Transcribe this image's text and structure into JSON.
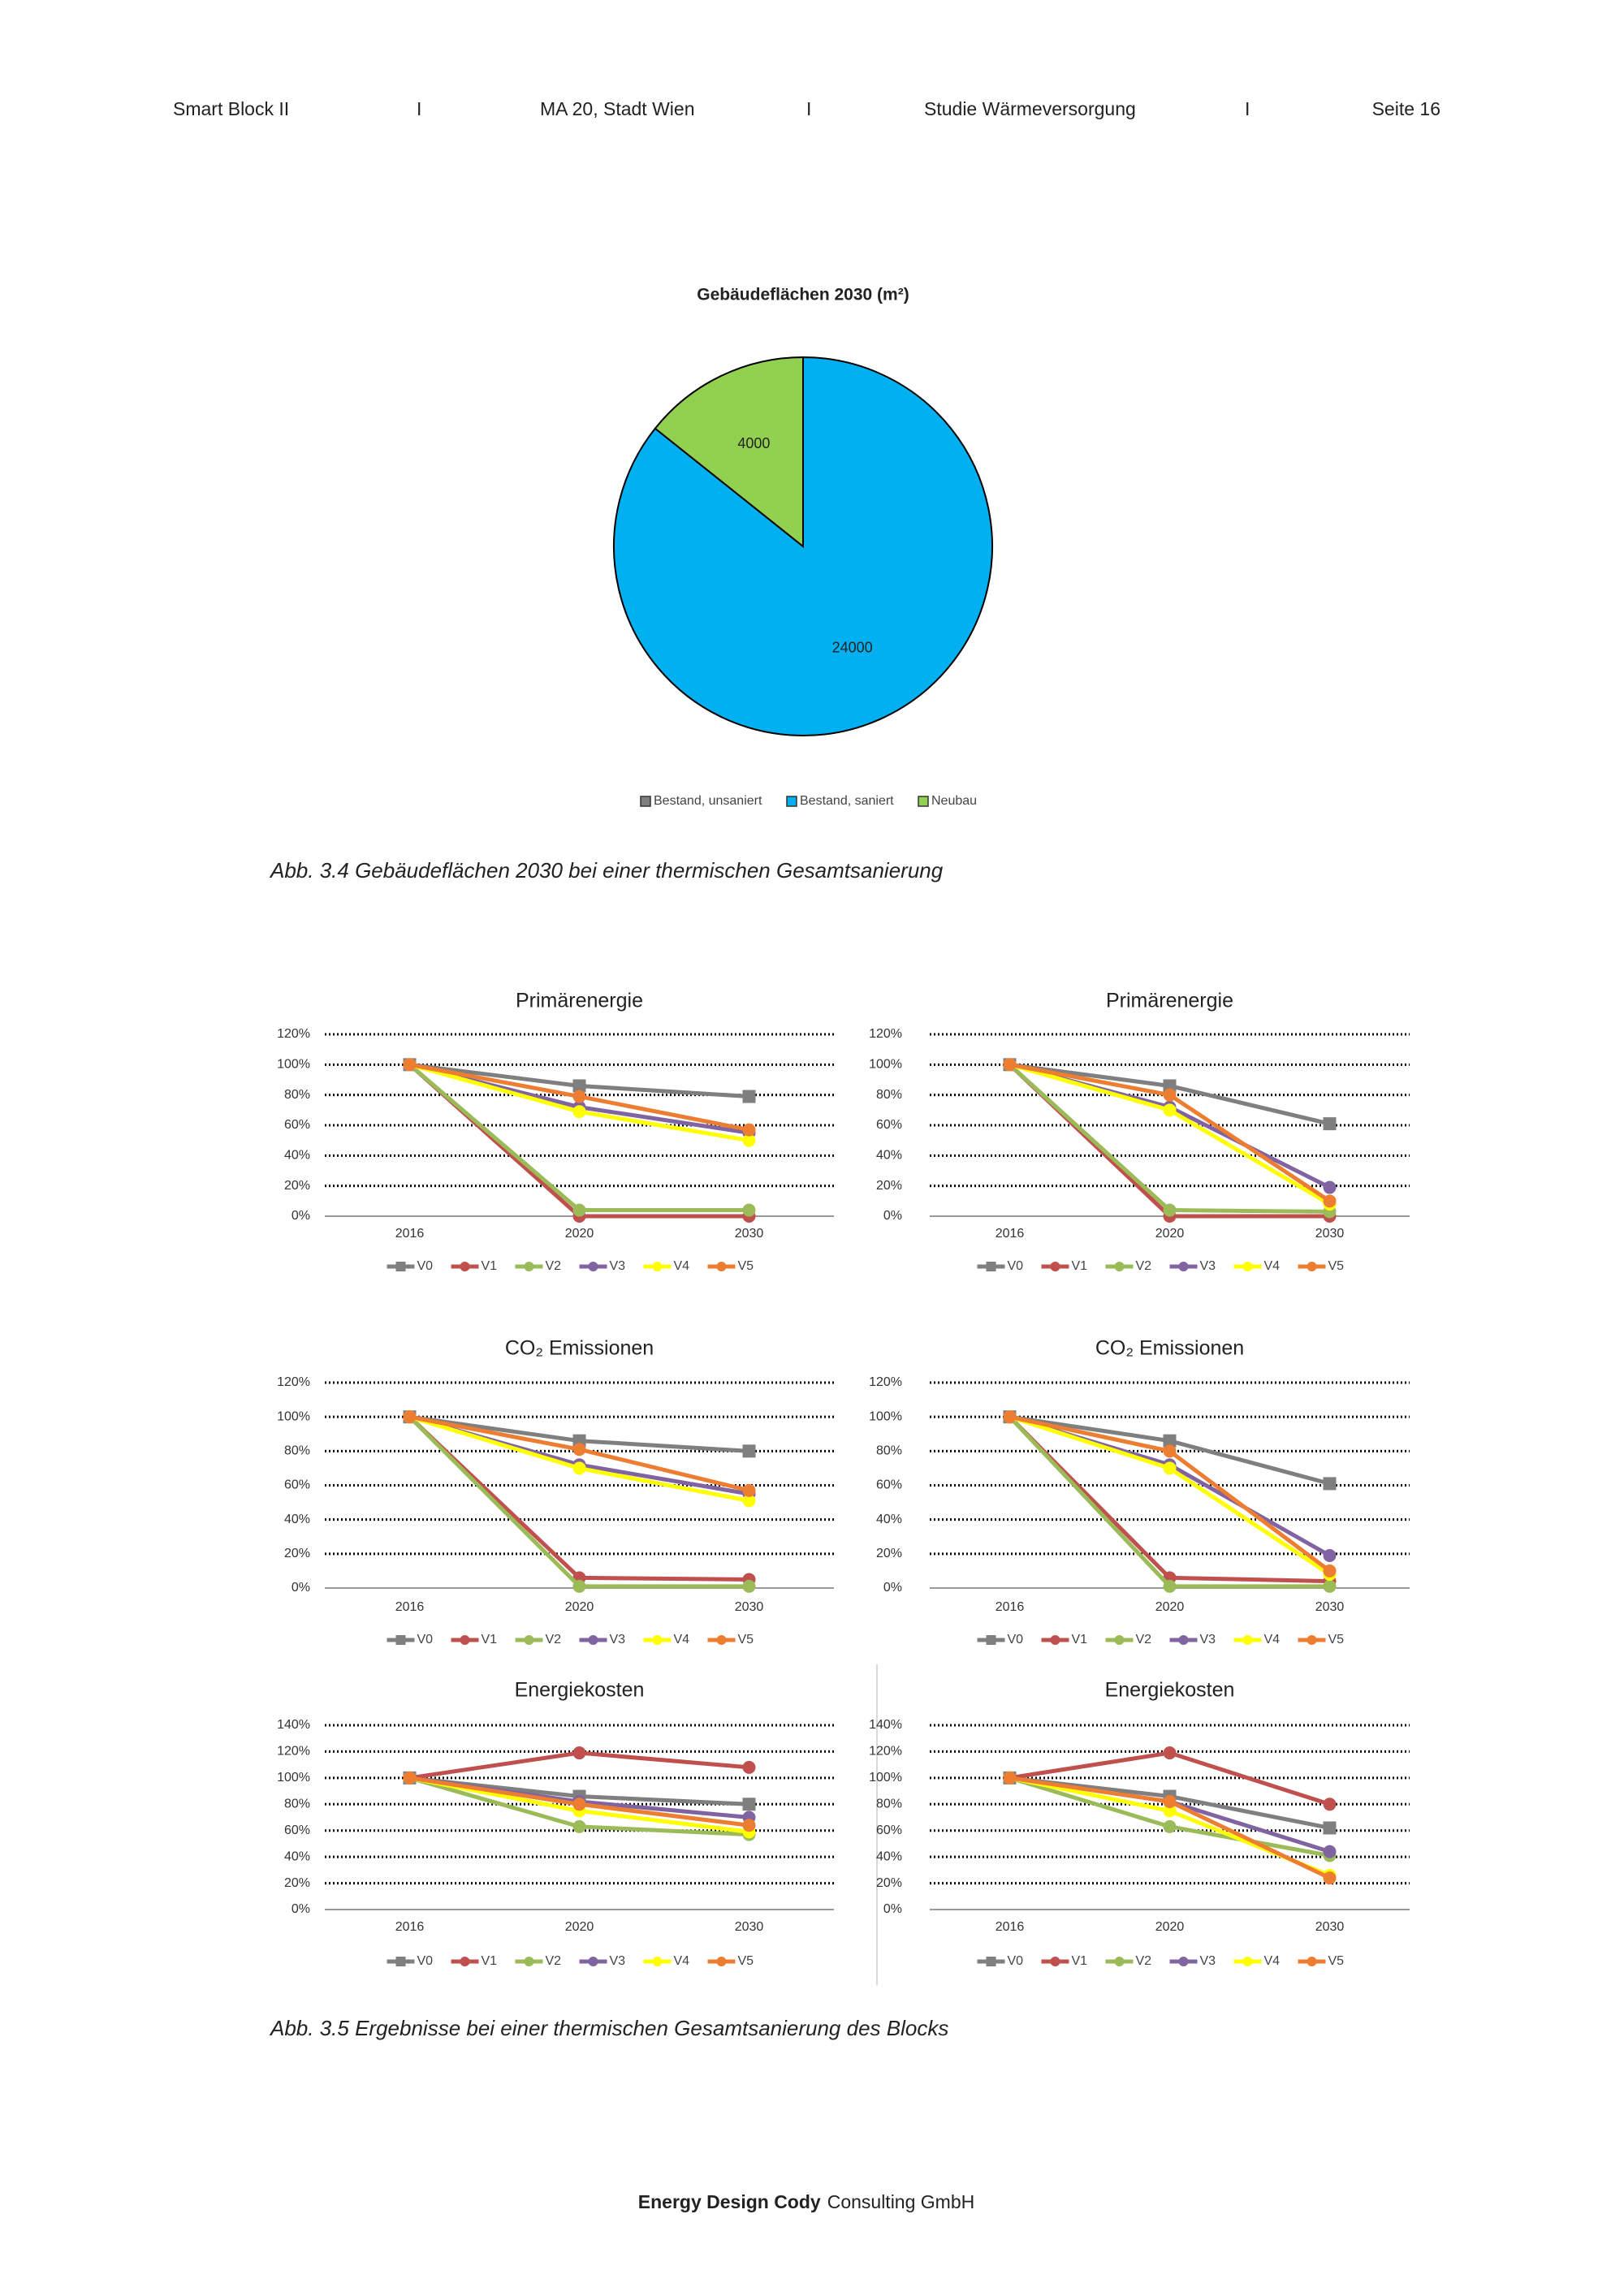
{
  "header": {
    "items": [
      "Smart Block II",
      "I",
      "MA 20, Stadt Wien",
      "I",
      "Studie Wärmeversorgung",
      "I",
      "Seite 16"
    ]
  },
  "chart_data": [
    {
      "type": "pie",
      "title": "Gebäudeflächen 2030 (m²)",
      "categories": [
        "Bestand, unsaniert",
        "Bestand, saniert",
        "Neubau"
      ],
      "values": [
        0,
        24000,
        4000
      ],
      "colors": [
        "#7f7f7f",
        "#00b0f0",
        "#92d050"
      ]
    },
    {
      "type": "line",
      "title": "Primärenergie",
      "categories": [
        "2016",
        "2020",
        "2030"
      ],
      "ylim": [
        0,
        120
      ],
      "yticks": [
        {
          "value": 0,
          "label": "0%"
        },
        {
          "value": 20,
          "label": "20%"
        },
        {
          "value": 40,
          "label": "40%"
        },
        {
          "value": 60,
          "label": "60%"
        },
        {
          "value": 80,
          "label": "80%"
        },
        {
          "value": 100,
          "label": "100%"
        },
        {
          "value": 120,
          "label": "120%"
        }
      ],
      "grid": true,
      "series": [
        {
          "name": "V0",
          "color": "#7f7f7f",
          "marker": "square",
          "values": [
            100,
            86,
            79
          ]
        },
        {
          "name": "V1",
          "color": "#c0504d",
          "marker": "circle",
          "values": [
            100,
            0,
            0
          ]
        },
        {
          "name": "V2",
          "color": "#9bbb59",
          "marker": "circle",
          "values": [
            100,
            4,
            4
          ]
        },
        {
          "name": "V3",
          "color": "#8064a2",
          "marker": "circle",
          "values": [
            100,
            72,
            55
          ]
        },
        {
          "name": "V4",
          "color": "#ffff00",
          "marker": "circle",
          "values": [
            100,
            69,
            50
          ]
        },
        {
          "name": "V5",
          "color": "#ed7d31",
          "marker": "circle",
          "values": [
            100,
            79,
            57
          ]
        }
      ]
    },
    {
      "type": "line",
      "title": "Primärenergie",
      "categories": [
        "2016",
        "2020",
        "2030"
      ],
      "ylim": [
        0,
        120
      ],
      "yticks": [
        {
          "value": 0,
          "label": "0%"
        },
        {
          "value": 20,
          "label": "20%"
        },
        {
          "value": 40,
          "label": "40%"
        },
        {
          "value": 60,
          "label": "60%"
        },
        {
          "value": 80,
          "label": "80%"
        },
        {
          "value": 100,
          "label": "100%"
        },
        {
          "value": 120,
          "label": "120%"
        }
      ],
      "grid": true,
      "series": [
        {
          "name": "V0",
          "color": "#7f7f7f",
          "marker": "square",
          "values": [
            100,
            86,
            61
          ]
        },
        {
          "name": "V1",
          "color": "#c0504d",
          "marker": "circle",
          "values": [
            100,
            0,
            0
          ]
        },
        {
          "name": "V2",
          "color": "#9bbb59",
          "marker": "circle",
          "values": [
            100,
            4,
            3
          ]
        },
        {
          "name": "V3",
          "color": "#8064a2",
          "marker": "circle",
          "values": [
            100,
            72,
            19
          ]
        },
        {
          "name": "V4",
          "color": "#ffff00",
          "marker": "circle",
          "values": [
            100,
            70,
            8
          ]
        },
        {
          "name": "V5",
          "color": "#ed7d31",
          "marker": "circle",
          "values": [
            100,
            80,
            10
          ]
        }
      ]
    },
    {
      "type": "line",
      "title": "CO₂ Emissionen",
      "categories": [
        "2016",
        "2020",
        "2030"
      ],
      "ylim": [
        0,
        120
      ],
      "yticks": [
        {
          "value": 0,
          "label": "0%"
        },
        {
          "value": 20,
          "label": "20%"
        },
        {
          "value": 40,
          "label": "40%"
        },
        {
          "value": 60,
          "label": "60%"
        },
        {
          "value": 80,
          "label": "80%"
        },
        {
          "value": 100,
          "label": "100%"
        },
        {
          "value": 120,
          "label": "120%"
        }
      ],
      "grid": true,
      "series": [
        {
          "name": "V0",
          "color": "#7f7f7f",
          "marker": "square",
          "values": [
            100,
            86,
            80
          ]
        },
        {
          "name": "V1",
          "color": "#c0504d",
          "marker": "circle",
          "values": [
            100,
            6,
            5
          ]
        },
        {
          "name": "V2",
          "color": "#9bbb59",
          "marker": "circle",
          "values": [
            100,
            1,
            1
          ]
        },
        {
          "name": "V3",
          "color": "#8064a2",
          "marker": "circle",
          "values": [
            100,
            72,
            55
          ]
        },
        {
          "name": "V4",
          "color": "#ffff00",
          "marker": "circle",
          "values": [
            100,
            70,
            51
          ]
        },
        {
          "name": "V5",
          "color": "#ed7d31",
          "marker": "circle",
          "values": [
            100,
            81,
            57
          ]
        }
      ]
    },
    {
      "type": "line",
      "title": "CO₂ Emissionen",
      "categories": [
        "2016",
        "2020",
        "2030"
      ],
      "ylim": [
        0,
        120
      ],
      "yticks": [
        {
          "value": 0,
          "label": "0%"
        },
        {
          "value": 20,
          "label": "20%"
        },
        {
          "value": 40,
          "label": "40%"
        },
        {
          "value": 60,
          "label": "60%"
        },
        {
          "value": 80,
          "label": "80%"
        },
        {
          "value": 100,
          "label": "100%"
        },
        {
          "value": 120,
          "label": "120%"
        }
      ],
      "grid": true,
      "series": [
        {
          "name": "V0",
          "color": "#7f7f7f",
          "marker": "square",
          "values": [
            100,
            86,
            61
          ]
        },
        {
          "name": "V1",
          "color": "#c0504d",
          "marker": "circle",
          "values": [
            100,
            6,
            4
          ]
        },
        {
          "name": "V2",
          "color": "#9bbb59",
          "marker": "circle",
          "values": [
            100,
            1,
            1
          ]
        },
        {
          "name": "V3",
          "color": "#8064a2",
          "marker": "circle",
          "values": [
            100,
            72,
            19
          ]
        },
        {
          "name": "V4",
          "color": "#ffff00",
          "marker": "circle",
          "values": [
            100,
            70,
            8
          ]
        },
        {
          "name": "V5",
          "color": "#ed7d31",
          "marker": "circle",
          "values": [
            100,
            80,
            10
          ]
        }
      ]
    },
    {
      "type": "line",
      "title": "Energiekosten",
      "categories": [
        "2016",
        "2020",
        "2030"
      ],
      "ylim": [
        0,
        140
      ],
      "yticks": [
        {
          "value": 0,
          "label": "0%"
        },
        {
          "value": 20,
          "label": "20%"
        },
        {
          "value": 40,
          "label": "40%"
        },
        {
          "value": 60,
          "label": "60%"
        },
        {
          "value": 80,
          "label": "80%"
        },
        {
          "value": 100,
          "label": "100%"
        },
        {
          "value": 120,
          "label": "120%"
        },
        {
          "value": 140,
          "label": "140%"
        }
      ],
      "grid": true,
      "series": [
        {
          "name": "V0",
          "color": "#7f7f7f",
          "marker": "square",
          "values": [
            100,
            86,
            80
          ]
        },
        {
          "name": "V1",
          "color": "#c0504d",
          "marker": "circle",
          "values": [
            100,
            119,
            108
          ]
        },
        {
          "name": "V2",
          "color": "#9bbb59",
          "marker": "circle",
          "values": [
            100,
            63,
            57
          ]
        },
        {
          "name": "V3",
          "color": "#8064a2",
          "marker": "circle",
          "values": [
            100,
            82,
            70
          ]
        },
        {
          "name": "V4",
          "color": "#ffff00",
          "marker": "circle",
          "values": [
            100,
            75,
            59
          ]
        },
        {
          "name": "V5",
          "color": "#ed7d31",
          "marker": "circle",
          "values": [
            100,
            80,
            64
          ]
        }
      ]
    },
    {
      "type": "line",
      "title": "Energiekosten",
      "categories": [
        "2016",
        "2020",
        "2030"
      ],
      "ylim": [
        0,
        140
      ],
      "yticks": [
        {
          "value": 0,
          "label": "0%"
        },
        {
          "value": 20,
          "label": "20%"
        },
        {
          "value": 40,
          "label": "40%"
        },
        {
          "value": 60,
          "label": "60%"
        },
        {
          "value": 80,
          "label": "80%"
        },
        {
          "value": 100,
          "label": "100%"
        },
        {
          "value": 120,
          "label": "120%"
        },
        {
          "value": 140,
          "label": "140%"
        }
      ],
      "grid": true,
      "series": [
        {
          "name": "V0",
          "color": "#7f7f7f",
          "marker": "square",
          "values": [
            100,
            86,
            62
          ]
        },
        {
          "name": "V1",
          "color": "#c0504d",
          "marker": "circle",
          "values": [
            100,
            119,
            80
          ]
        },
        {
          "name": "V2",
          "color": "#9bbb59",
          "marker": "circle",
          "values": [
            100,
            63,
            41
          ]
        },
        {
          "name": "V3",
          "color": "#8064a2",
          "marker": "circle",
          "values": [
            100,
            82,
            44
          ]
        },
        {
          "name": "V4",
          "color": "#ffff00",
          "marker": "circle",
          "values": [
            100,
            75,
            26
          ]
        },
        {
          "name": "V5",
          "color": "#ed7d31",
          "marker": "circle",
          "values": [
            100,
            82,
            24
          ]
        }
      ]
    }
  ],
  "captions": [
    "Abb. 3.4 Gebäudeflächen 2030 bei einer thermischen Gesamtsanierung",
    "Abb. 3.5 Ergebnisse bei einer thermischen Gesamtsanierung des Blocks"
  ],
  "footer": {
    "bold": "Energy Design Cody",
    "text": "Consulting GmbH"
  }
}
